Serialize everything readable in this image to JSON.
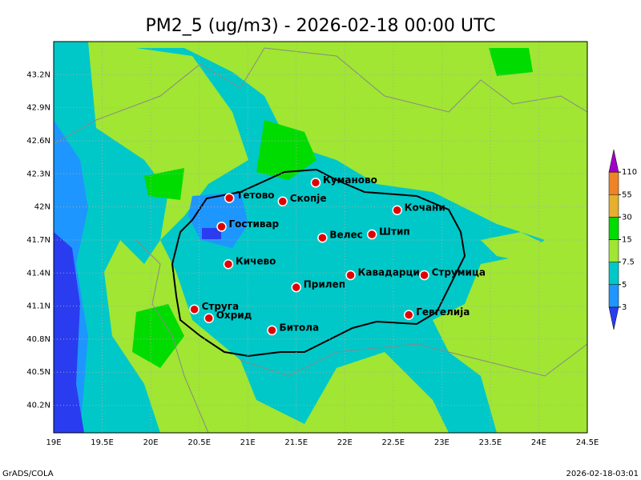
{
  "title": "PM2_5 (ug/m3) - 2026-02-18 00:00 UTC",
  "map": {
    "xlim": [
      19,
      24.5
    ],
    "ylim": [
      39.95,
      43.5
    ],
    "xticks": [
      {
        "value": 19,
        "label": "19E"
      },
      {
        "value": 19.5,
        "label": "19.5E"
      },
      {
        "value": 20,
        "label": "20E"
      },
      {
        "value": 20.5,
        "label": "20.5E"
      },
      {
        "value": 21,
        "label": "21E"
      },
      {
        "value": 21.5,
        "label": "21.5E"
      },
      {
        "value": 22,
        "label": "22E"
      },
      {
        "value": 22.5,
        "label": "22.5E"
      },
      {
        "value": 23,
        "label": "23E"
      },
      {
        "value": 23.5,
        "label": "23.5E"
      },
      {
        "value": 24,
        "label": "24E"
      },
      {
        "value": 24.5,
        "label": "24.5E"
      }
    ],
    "yticks": [
      {
        "value": 40.2,
        "label": "40.2N"
      },
      {
        "value": 40.5,
        "label": "40.5N"
      },
      {
        "value": 40.8,
        "label": "40.8N"
      },
      {
        "value": 41.1,
        "label": "41.1N"
      },
      {
        "value": 41.4,
        "label": "41.4N"
      },
      {
        "value": 41.7,
        "label": "41.7N"
      },
      {
        "value": 42,
        "label": "42N"
      },
      {
        "value": 42.3,
        "label": "42.3N"
      },
      {
        "value": 42.6,
        "label": "42.6N"
      },
      {
        "value": 42.9,
        "label": "42.9N"
      },
      {
        "value": 43.2,
        "label": "43.2N"
      }
    ],
    "cities": [
      {
        "name": "Тетово",
        "lon": 20.81,
        "lat": 42.08
      },
      {
        "name": "Скопје",
        "lon": 21.36,
        "lat": 42.05
      },
      {
        "name": "Куманово",
        "lon": 21.7,
        "lat": 42.22
      },
      {
        "name": "Гостивар",
        "lon": 20.73,
        "lat": 41.82
      },
      {
        "name": "Велес",
        "lon": 21.77,
        "lat": 41.72
      },
      {
        "name": "Штип",
        "lon": 22.28,
        "lat": 41.75
      },
      {
        "name": "Кочани",
        "lon": 22.54,
        "lat": 41.97
      },
      {
        "name": "Кичево",
        "lon": 20.8,
        "lat": 41.48
      },
      {
        "name": "Прилеп",
        "lon": 21.5,
        "lat": 41.27
      },
      {
        "name": "Кавадарци",
        "lon": 22.06,
        "lat": 41.38
      },
      {
        "name": "Струмица",
        "lon": 22.82,
        "lat": 41.38
      },
      {
        "name": "Струга",
        "lon": 20.45,
        "lat": 41.07
      },
      {
        "name": "Охрид",
        "lon": 20.6,
        "lat": 40.99
      },
      {
        "name": "Битола",
        "lon": 21.25,
        "lat": 40.88
      },
      {
        "name": "Гевгелија",
        "lon": 22.66,
        "lat": 41.02
      }
    ]
  },
  "colorbar": {
    "levels": [
      3,
      5,
      7.5,
      15,
      30,
      55,
      110
    ],
    "colors": [
      "#2a3cf0",
      "#1e96ff",
      "#00c8c8",
      "#a0e632",
      "#00dc00",
      "#e6af2d",
      "#f08228",
      "#a000c8"
    ]
  },
  "footer": {
    "left": "GrADS/COLA",
    "right": "2026-02-18-03:01"
  }
}
